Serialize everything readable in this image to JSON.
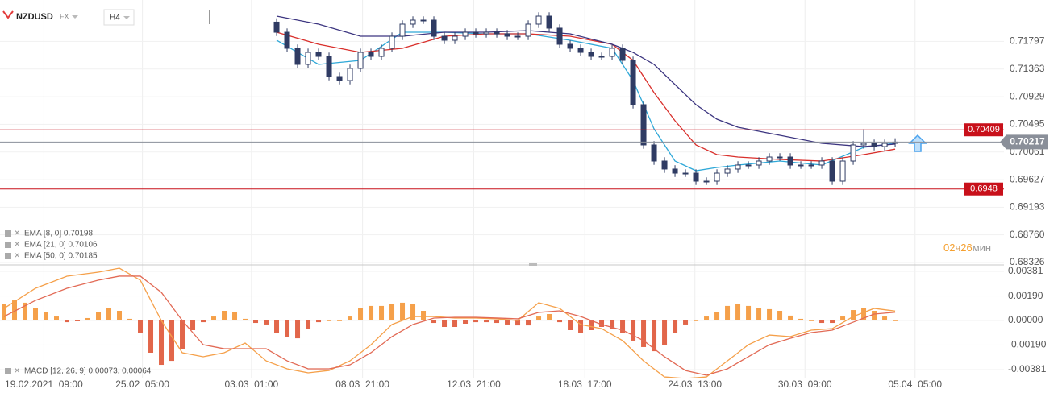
{
  "chart_data": {
    "type": "candlestick",
    "symbol": "NZDUSD",
    "market": "FX",
    "timeframe": "H4",
    "xlim": [
      -0.385,
      95.38
    ],
    "xticks": [
      {
        "value": 3.8,
        "label": "19.02.2021  09:00"
      },
      {
        "value": 13.2,
        "label": "25.02  05:00"
      },
      {
        "value": 23.6,
        "label": "03.03  01:00"
      },
      {
        "value": 34.2,
        "label": "08.03  21:00"
      },
      {
        "value": 44.8,
        "label": "12.03  21:00"
      },
      {
        "value": 55.4,
        "label": "18.03  17:00"
      },
      {
        "value": 65.9,
        "label": "24.03  13:00"
      },
      {
        "value": 76.4,
        "label": "30.03  09:00"
      },
      {
        "value": 86.9,
        "label": "05.04  05:00"
      }
    ],
    "ylim": [
      0.68301,
      0.72447
    ],
    "yticks": [
      0.71797,
      0.71363,
      0.70929,
      0.70495,
      0.70061,
      0.69627,
      0.69193,
      {
        "value": 0.6876,
        "label": "0.68760"
      },
      0.68326
    ],
    "grid": true,
    "up_color": "#ffffff",
    "down_color": "#2f3b63",
    "border_color": "#2f3b63",
    "x": [
      26,
      27,
      28,
      29,
      30,
      31,
      32,
      33,
      34,
      35,
      36,
      37,
      38,
      39,
      40,
      41,
      42,
      43,
      44,
      45,
      46,
      47,
      48,
      49,
      50,
      51,
      52,
      53,
      54,
      55,
      56,
      57,
      58,
      59,
      60,
      61,
      62,
      63,
      64,
      65,
      66,
      67,
      68,
      69,
      70,
      71,
      72,
      73,
      74,
      75,
      76,
      77,
      78,
      79,
      80,
      81,
      82,
      83,
      84,
      85
    ],
    "open": [
      0.721,
      0.71941,
      0.71689,
      0.71436,
      0.71625,
      0.71562,
      0.71246,
      0.71183,
      0.71373,
      0.71625,
      0.71562,
      0.71689,
      0.71878,
      0.72068,
      0.72131,
      0.72131,
      0.71878,
      0.71815,
      0.71878,
      0.71941,
      0.71916,
      0.71941,
      0.71916,
      0.71878,
      0.71878,
      0.72068,
      0.72194,
      0.72005,
      0.71752,
      0.71689,
      0.71625,
      0.71562,
      0.71562,
      0.71689,
      0.71499,
      0.70804,
      0.70172,
      0.69919,
      0.69793,
      0.69729,
      0.69729,
      0.69603,
      0.69603,
      0.69729,
      0.69793,
      0.69856,
      0.69856,
      0.69919,
      0.69982,
      0.69982,
      0.69856,
      0.69856,
      0.69856,
      0.69919,
      0.69603,
      0.69919,
      0.70172,
      0.70197,
      0.70146,
      0.70197
    ],
    "high": [
      0.7216,
      0.72001,
      0.71749,
      0.71685,
      0.71685,
      0.71622,
      0.71306,
      0.71433,
      0.71685,
      0.71685,
      0.71749,
      0.71938,
      0.72128,
      0.72191,
      0.72191,
      0.72191,
      0.71938,
      0.71938,
      0.72001,
      0.72001,
      0.72001,
      0.72001,
      0.71976,
      0.71938,
      0.72128,
      0.72254,
      0.72254,
      0.72065,
      0.71812,
      0.71749,
      0.71685,
      0.71622,
      0.71749,
      0.71749,
      0.71559,
      0.70864,
      0.70232,
      0.69979,
      0.69853,
      0.69789,
      0.69789,
      0.69663,
      0.69789,
      0.69853,
      0.69916,
      0.69916,
      0.69979,
      0.70042,
      0.70042,
      0.70042,
      0.69916,
      0.69916,
      0.69979,
      0.69979,
      0.69979,
      0.70232,
      0.7042,
      0.70257,
      0.70257,
      0.70277
    ],
    "low": [
      0.71881,
      0.71629,
      0.71376,
      0.71376,
      0.71502,
      0.71186,
      0.71123,
      0.71123,
      0.71313,
      0.71502,
      0.71502,
      0.71629,
      0.71818,
      0.72008,
      0.72071,
      0.71818,
      0.71755,
      0.71755,
      0.71818,
      0.71856,
      0.71856,
      0.71856,
      0.71818,
      0.71818,
      0.71818,
      0.72008,
      0.71945,
      0.71692,
      0.71629,
      0.71565,
      0.71502,
      0.71502,
      0.71502,
      0.71439,
      0.70744,
      0.70112,
      0.69859,
      0.69733,
      0.69669,
      0.69669,
      0.69543,
      0.69543,
      0.69543,
      0.69669,
      0.69733,
      0.69796,
      0.69796,
      0.69859,
      0.69922,
      0.69796,
      0.69796,
      0.69796,
      0.69796,
      0.69543,
      0.69543,
      0.69859,
      0.70112,
      0.70086,
      0.70086,
      0.70137
    ],
    "close": [
      0.71941,
      0.71689,
      0.71436,
      0.71625,
      0.71562,
      0.71246,
      0.71183,
      0.71373,
      0.71625,
      0.71562,
      0.71689,
      0.71878,
      0.72068,
      0.72131,
      0.72131,
      0.71878,
      0.71815,
      0.71878,
      0.71941,
      0.71916,
      0.71941,
      0.71916,
      0.71878,
      0.71878,
      0.72068,
      0.72194,
      0.72005,
      0.71752,
      0.71689,
      0.71625,
      0.71562,
      0.71562,
      0.71689,
      0.71499,
      0.70804,
      0.70172,
      0.69919,
      0.69793,
      0.69729,
      0.69729,
      0.69603,
      0.69603,
      0.69729,
      0.69793,
      0.69856,
      0.69856,
      0.69919,
      0.69982,
      0.69982,
      0.69856,
      0.69856,
      0.69856,
      0.69919,
      0.69603,
      0.69919,
      0.70172,
      0.70197,
      0.70146,
      0.70197,
      0.70217
    ],
    "series": [
      {
        "name": "EMA [8, 0] 0.70198",
        "color": "#2ea8d8",
        "x": [
          26,
          30,
          34,
          38,
          42,
          46,
          50,
          54,
          58,
          60,
          62,
          64,
          66,
          68,
          70,
          74,
          78,
          82,
          85
        ],
        "values": [
          0.71815,
          0.71436,
          0.71499,
          0.71941,
          0.71941,
          0.71916,
          0.71916,
          0.71815,
          0.71689,
          0.71183,
          0.70425,
          0.69919,
          0.69767,
          0.69818,
          0.69856,
          0.69919,
          0.69856,
          0.70134,
          0.70198
        ]
      },
      {
        "name": "EMA [21, 0] 0.70106",
        "color": "#d9302c",
        "x": [
          26,
          30,
          34,
          38,
          42,
          46,
          50,
          54,
          58,
          60,
          62,
          64,
          66,
          68,
          70,
          74,
          78,
          82,
          85
        ],
        "values": [
          0.71941,
          0.71752,
          0.71625,
          0.71689,
          0.71878,
          0.71916,
          0.71916,
          0.71878,
          0.71752,
          0.71499,
          0.70993,
          0.70551,
          0.70172,
          0.7002,
          0.69982,
          0.69944,
          0.69919,
          0.7002,
          0.70106
        ]
      },
      {
        "name": "EMA [50, 0] 0.70185",
        "color": "#3c3580",
        "x": [
          26,
          30,
          34,
          38,
          42,
          46,
          50,
          54,
          58,
          60,
          62,
          64,
          66,
          68,
          70,
          74,
          78,
          82,
          85
        ],
        "values": [
          0.72194,
          0.72068,
          0.71878,
          0.71878,
          0.71941,
          0.71941,
          0.71967,
          0.71916,
          0.71752,
          0.71625,
          0.71436,
          0.7112,
          0.70804,
          0.70576,
          0.7045,
          0.70323,
          0.70197,
          0.70146,
          0.70185
        ]
      }
    ],
    "levels": [
      {
        "value": 0.70409,
        "color": "#c8101a"
      },
      {
        "value": 0.6948,
        "color": "#c8101a"
      }
    ],
    "current": {
      "value": 0.70217,
      "color": "#8a8f99"
    },
    "timer": [
      {
        "text": "02",
        "color": "#f5a030"
      },
      {
        "text": "ч",
        "color": "#d9a060"
      },
      {
        "text": "26",
        "color": "#f5a030"
      },
      {
        "text": "мин",
        "color": "#999999"
      }
    ],
    "macd": {
      "legend": "MACD [12, 26, 9] 0.00073, 0.00064",
      "ylim": [
        -0.0045,
        0.00425
      ],
      "yticks": [
        0.00381,
        {
          "value": 0.0019,
          "label": "0.00190"
        },
        {
          "value": 0,
          "label": "0.00000"
        },
        {
          "value": -0.0019,
          "label": "-0.00190"
        },
        -0.00381
      ],
      "positive_color": "#f5a04a",
      "negative_color": "#e2664a",
      "histogram": [
        0.00125,
        0.00156,
        0.00138,
        0.00094,
        0.00063,
        0.00031,
        -0.00013,
        -6e-05,
        0.00019,
        0.00063,
        0.00094,
        0.00075,
        0.00013,
        -0.00094,
        -0.0025,
        -0.00344,
        -0.00313,
        -0.00219,
        -0.00075,
        -0.00013,
        0.00031,
        0.00075,
        0.00063,
        0.00013,
        -0.00019,
        -0.00031,
        -0.00094,
        -0.00125,
        -0.00138,
        -0.00063,
        -0.00013,
        0,
        0,
        0.00031,
        0.00094,
        0.00113,
        0.00113,
        0.00125,
        0.00138,
        0.00125,
        0.00075,
        -0.00019,
        -0.0005,
        -0.0005,
        -0.00025,
        -0.00013,
        -0.00013,
        -0.00019,
        -0.00031,
        -0.00038,
        -0.00038,
        0.00031,
        0.0005,
        -0.00013,
        -0.00075,
        -0.00094,
        -0.00075,
        -0.0005,
        -0.00063,
        -0.00094,
        -0.00156,
        -0.00206,
        -0.00238,
        -0.00188,
        -0.00094,
        -0.00031,
        0,
        0.00031,
        0.00063,
        0.00113,
        0.00125,
        0.00113,
        0.00094,
        0.00088,
        0.00075,
        0.00038,
        0.00013,
        0,
        -0.00019,
        -0.00019,
        0.00031,
        0.00081,
        0.001,
        0.00075,
        0.00031,
        0
      ],
      "lines": [
        {
          "color": "#f5a04a",
          "x": [
            0,
            3,
            6,
            9,
            11,
            13,
            15,
            17,
            19,
            21,
            23,
            25,
            27,
            29,
            31,
            33,
            35,
            37,
            39,
            41,
            43,
            45,
            47,
            49,
            51,
            53,
            55,
            57,
            59,
            61,
            63,
            65,
            67,
            69,
            71,
            73,
            75,
            77,
            79,
            81,
            83,
            85
          ],
          "values": [
            0.00094,
            0.0025,
            0.00344,
            0.00375,
            0.00406,
            0.00313,
            0,
            -0.0025,
            -0.00281,
            -0.0025,
            -0.00175,
            -0.00313,
            -0.00375,
            -0.00406,
            -0.00388,
            -0.00313,
            -0.00188,
            -0.00031,
            0.00031,
            0.00031,
            0.00019,
            0.00019,
            0.00013,
            0,
            0.00138,
            0.00094,
            -0.00031,
            -0.00063,
            -0.00156,
            -0.00313,
            -0.00438,
            -0.0045,
            -0.00438,
            -0.00313,
            -0.00188,
            -0.00113,
            -0.00125,
            -0.00075,
            -0.00063,
            0.00031,
            0.00094,
            0.00073
          ]
        },
        {
          "color": "#e26a55",
          "x": [
            0,
            3,
            6,
            9,
            11,
            13,
            15,
            17,
            19,
            21,
            23,
            25,
            27,
            29,
            31,
            33,
            35,
            37,
            39,
            41,
            43,
            45,
            47,
            49,
            51,
            53,
            55,
            57,
            59,
            61,
            63,
            65,
            67,
            69,
            71,
            73,
            75,
            77,
            79,
            81,
            83,
            85
          ],
          "values": [
            0.00031,
            0.00156,
            0.0025,
            0.00313,
            0.00344,
            0.00344,
            0.00219,
            0,
            -0.00188,
            -0.00219,
            -0.00219,
            -0.00219,
            -0.00313,
            -0.00375,
            -0.00375,
            -0.00344,
            -0.0025,
            -0.00125,
            -0.00031,
            0.00019,
            0.00025,
            0.00025,
            0.00019,
            0.00013,
            0.00063,
            0.00075,
            0.00031,
            -0.00031,
            -0.00075,
            -0.00156,
            -0.00281,
            -0.00388,
            -0.00425,
            -0.00375,
            -0.00281,
            -0.00188,
            -0.00138,
            -0.00094,
            -0.00075,
            -0.00013,
            0.0005,
            0.00064
          ]
        }
      ]
    }
  }
}
